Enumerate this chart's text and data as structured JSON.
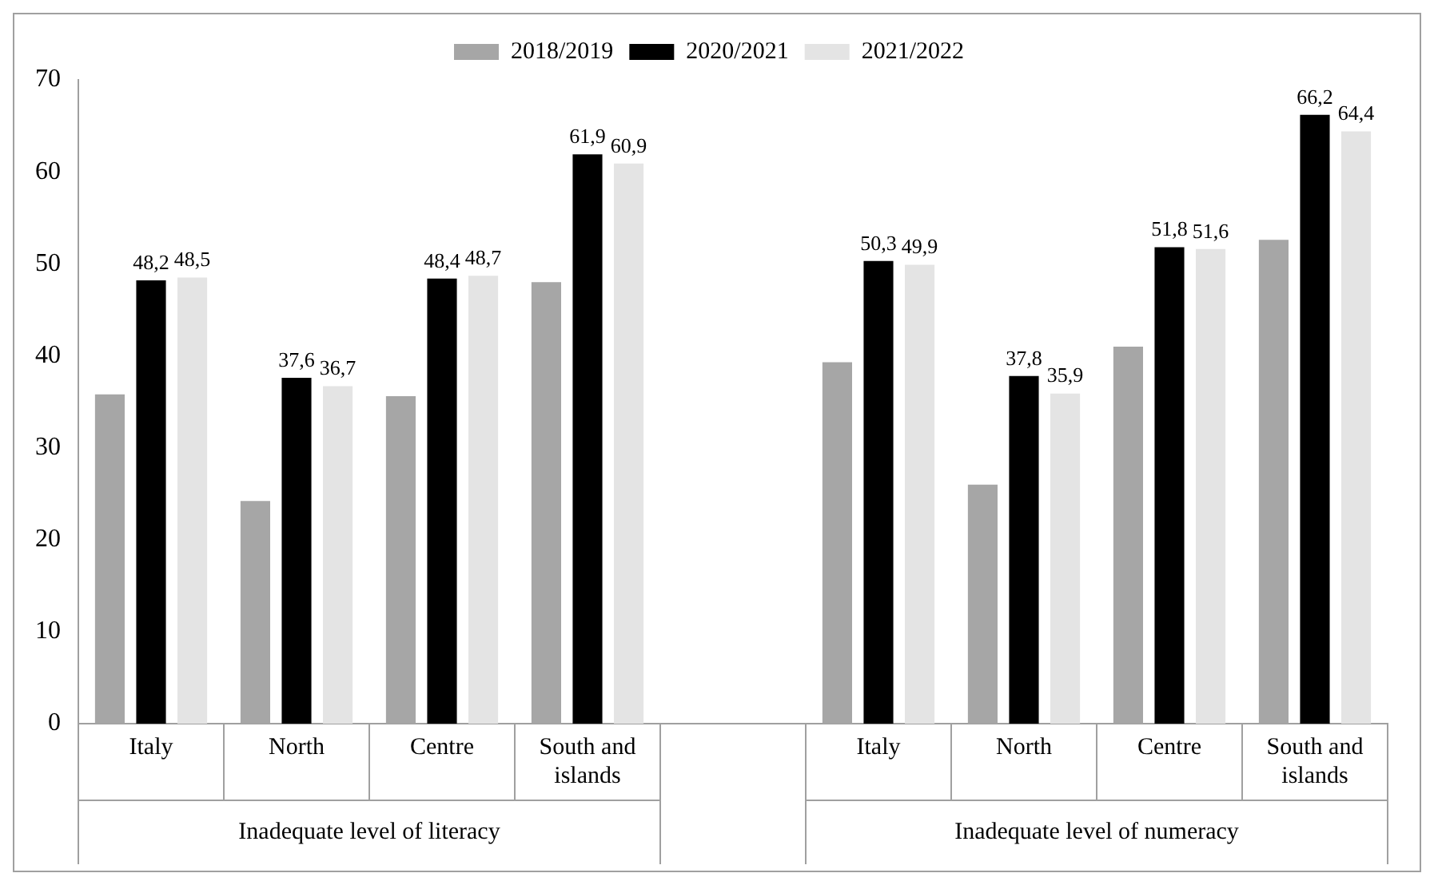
{
  "chart_data": {
    "type": "bar",
    "categories": [
      "Italy",
      "North",
      "Centre",
      "South and islands",
      null,
      "Italy",
      "North",
      "Centre",
      "South and islands"
    ],
    "series": [
      {
        "name": "2018/2019",
        "color": "#a6a6a6",
        "values": [
          35.8,
          24.2,
          35.6,
          48.0,
          null,
          39.3,
          26.0,
          41.0,
          52.6
        ]
      },
      {
        "name": "2020/2021",
        "color": "#000000",
        "values": [
          48.2,
          37.6,
          48.4,
          61.9,
          null,
          50.3,
          37.8,
          51.8,
          66.2
        ],
        "value_labels": [
          "48,2",
          "37,6",
          "48,4",
          "61,9",
          null,
          "50,3",
          "37,8",
          "51,8",
          "66,2"
        ]
      },
      {
        "name": "2021/2022",
        "color": "#e4e4e4",
        "values": [
          48.5,
          36.7,
          48.7,
          60.9,
          null,
          49.9,
          35.9,
          51.6,
          64.4
        ],
        "value_labels": [
          "48,5",
          "36,7",
          "48,7",
          "60,9",
          null,
          "49,9",
          "35,9",
          "51,6",
          "64,4"
        ]
      }
    ],
    "annotations": [
      "Inadequate level of literacy",
      "Inadequate level of numeracy"
    ],
    "ylim": [
      0,
      70
    ],
    "yticks": [
      0,
      10,
      20,
      30,
      40,
      50,
      60,
      70
    ],
    "grid": false,
    "legend": "top"
  }
}
